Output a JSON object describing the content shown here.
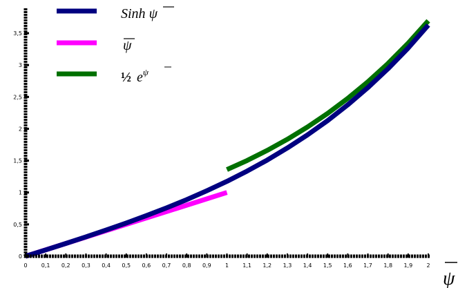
{
  "chart_data": {
    "type": "line",
    "xlim": [
      0,
      2
    ],
    "ylim": [
      0,
      3.7
    ],
    "x_ticks": [
      "0",
      "0,1",
      "0,2",
      "0,3",
      "0,4",
      "0,5",
      "0,6",
      "0,7",
      "0,8",
      "0,9",
      "1",
      "1,1",
      "1,2",
      "1,3",
      "1,4",
      "1,5",
      "1,6",
      "1,7",
      "1,8",
      "1,9",
      "2"
    ],
    "y_ticks": [
      {
        "value": 0,
        "label": "0"
      },
      {
        "value": 0.5,
        "label": "0,5"
      },
      {
        "value": 1,
        "label": "1"
      },
      {
        "value": 1.5,
        "label": "1,5"
      },
      {
        "value": 2,
        "label": "2"
      },
      {
        "value": 2.5,
        "label": "2,5"
      },
      {
        "value": 3,
        "label": "3"
      },
      {
        "value": 3.5,
        "label": "3,5"
      }
    ],
    "xlabel": "ψ̄",
    "legend_placement": "top-left",
    "series": [
      {
        "name": "Sinh ψ̄",
        "name_main": "Sinh ",
        "name_psi": "ψ",
        "color": "#000080",
        "x": [
          0,
          0.1,
          0.2,
          0.3,
          0.4,
          0.5,
          0.6,
          0.7,
          0.8,
          0.9,
          1,
          1.1,
          1.2,
          1.3,
          1.4,
          1.5,
          1.6,
          1.7,
          1.8,
          1.9,
          2
        ],
        "y": [
          0,
          0.1,
          0.201,
          0.305,
          0.411,
          0.521,
          0.637,
          0.759,
          0.888,
          1.027,
          1.175,
          1.336,
          1.509,
          1.698,
          1.904,
          2.129,
          2.376,
          2.646,
          2.942,
          3.268,
          3.627
        ]
      },
      {
        "name": "ψ̄",
        "name_psi": "ψ",
        "color": "#ff00ff",
        "x": [
          0,
          1
        ],
        "y": [
          0,
          1
        ]
      },
      {
        "name": "½ e^ψ̄",
        "name_half": "½",
        "name_e": "e",
        "name_sup": "ψ",
        "color": "#007000",
        "x": [
          1,
          1.1,
          1.2,
          1.3,
          1.4,
          1.5,
          1.6,
          1.7,
          1.8,
          1.9,
          2
        ],
        "y": [
          1.359,
          1.502,
          1.66,
          1.835,
          2.028,
          2.241,
          2.477,
          2.737,
          3.025,
          3.343,
          3.695
        ]
      }
    ]
  }
}
